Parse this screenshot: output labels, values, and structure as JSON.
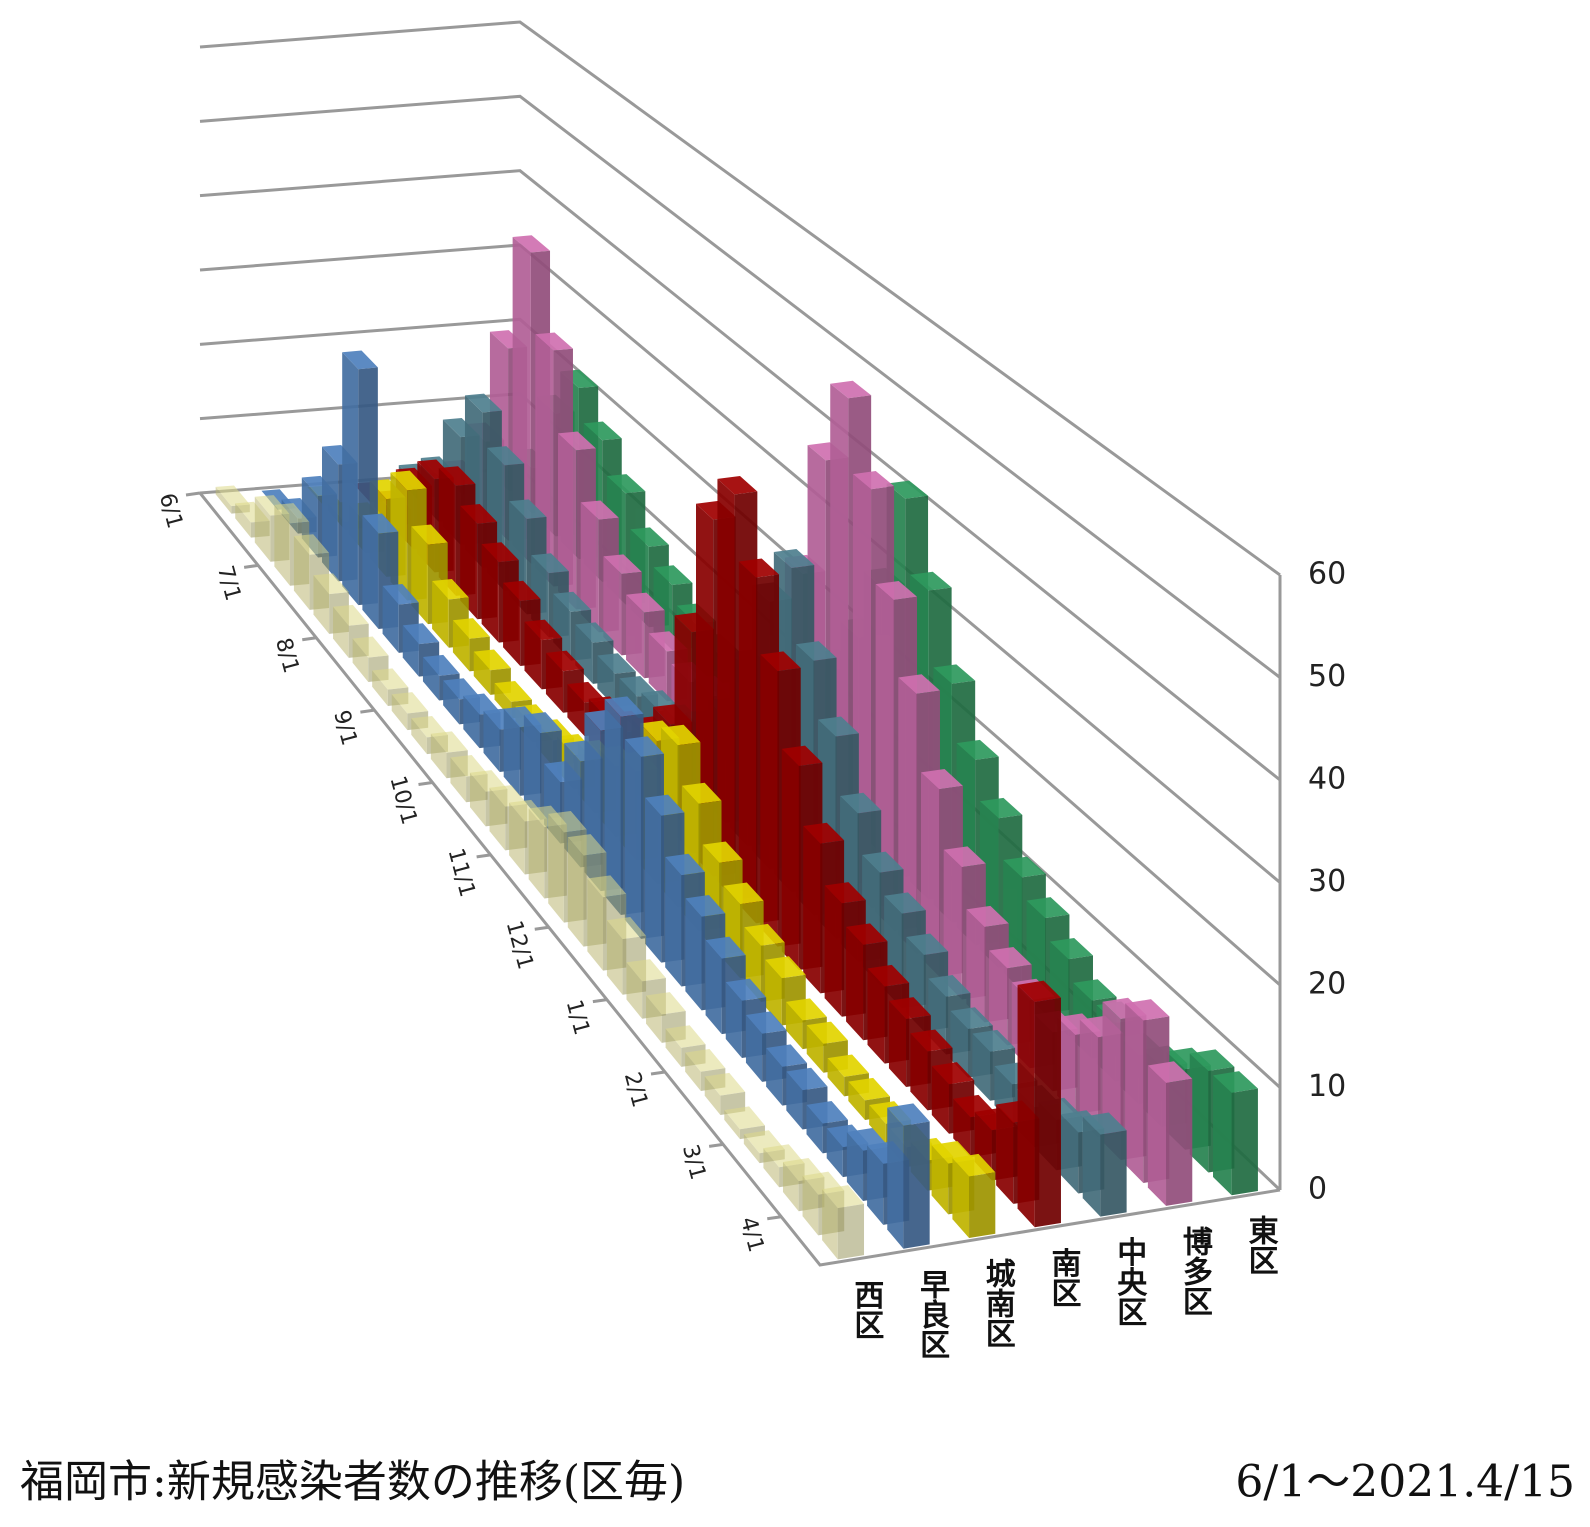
{
  "chart_data": {
    "type": "bar3d",
    "title": "福岡市:新規感染者数の推移(区毎)",
    "subtitle": "6/1～2021.4/15",
    "categories": [
      "6/1",
      null,
      null,
      "7/1",
      null,
      null,
      "8/1",
      null,
      null,
      "9/1",
      null,
      null,
      "10/1",
      null,
      null,
      "11/1",
      null,
      null,
      "12/1",
      null,
      null,
      "1/1",
      null,
      null,
      "2/1",
      null,
      null,
      "3/1",
      null,
      null,
      "4/1",
      null
    ],
    "series": [
      {
        "name": "西区",
        "color": "#ddd98a",
        "values": [
          1,
          2,
          6,
          8,
          7,
          5,
          4,
          3,
          2,
          2,
          2,
          3,
          3,
          4,
          5,
          6,
          8,
          10,
          10,
          8,
          6,
          4,
          3,
          2,
          2,
          2,
          1,
          1,
          2,
          3,
          4,
          5
        ]
      },
      {
        "name": "早良区",
        "color": "#4f81bd",
        "values": [
          0,
          2,
          8,
          15,
          30,
          12,
          6,
          4,
          3,
          3,
          4,
          5,
          8,
          10,
          7,
          12,
          18,
          22,
          20,
          16,
          12,
          10,
          8,
          6,
          5,
          4,
          4,
          3,
          3,
          5,
          6,
          12
        ]
      },
      {
        "name": "城南区",
        "color": "#e2d400",
        "values": [
          0,
          1,
          4,
          10,
          14,
          10,
          6,
          4,
          3,
          2,
          2,
          3,
          4,
          6,
          8,
          10,
          16,
          18,
          14,
          10,
          8,
          6,
          5,
          3,
          3,
          2,
          2,
          2,
          2,
          3,
          5,
          6
        ]
      },
      {
        "name": "南区",
        "color": "#a00000",
        "values": [
          0,
          2,
          8,
          12,
          14,
          12,
          10,
          8,
          6,
          5,
          4,
          5,
          6,
          8,
          12,
          25,
          40,
          45,
          38,
          30,
          22,
          16,
          12,
          10,
          8,
          7,
          6,
          5,
          4,
          5,
          8,
          22
        ]
      },
      {
        "name": "中央区",
        "color": "#4f7f8f",
        "values": [
          2,
          6,
          14,
          20,
          16,
          12,
          8,
          6,
          5,
          4,
          4,
          5,
          6,
          8,
          12,
          20,
          30,
          36,
          28,
          22,
          16,
          12,
          10,
          8,
          6,
          5,
          5,
          4,
          4,
          5,
          6,
          8
        ]
      },
      {
        "name": "博多区",
        "color": "#d070b0",
        "values": [
          2,
          10,
          25,
          40,
          30,
          20,
          14,
          10,
          8,
          6,
          5,
          6,
          8,
          10,
          16,
          30,
          45,
          54,
          46,
          36,
          28,
          20,
          14,
          10,
          8,
          7,
          6,
          8,
          10,
          14,
          16,
          12
        ]
      },
      {
        "name": "東区",
        "color": "#2e9a5e",
        "values": [
          1,
          6,
          16,
          22,
          18,
          14,
          10,
          8,
          6,
          5,
          5,
          6,
          8,
          12,
          16,
          22,
          30,
          42,
          34,
          26,
          20,
          16,
          12,
          10,
          8,
          6,
          6,
          5,
          6,
          8,
          10,
          10
        ]
      }
    ],
    "ylim": [
      0,
      60
    ],
    "yticks": [
      0,
      10,
      20,
      30,
      40,
      50,
      60
    ],
    "grid": true
  }
}
